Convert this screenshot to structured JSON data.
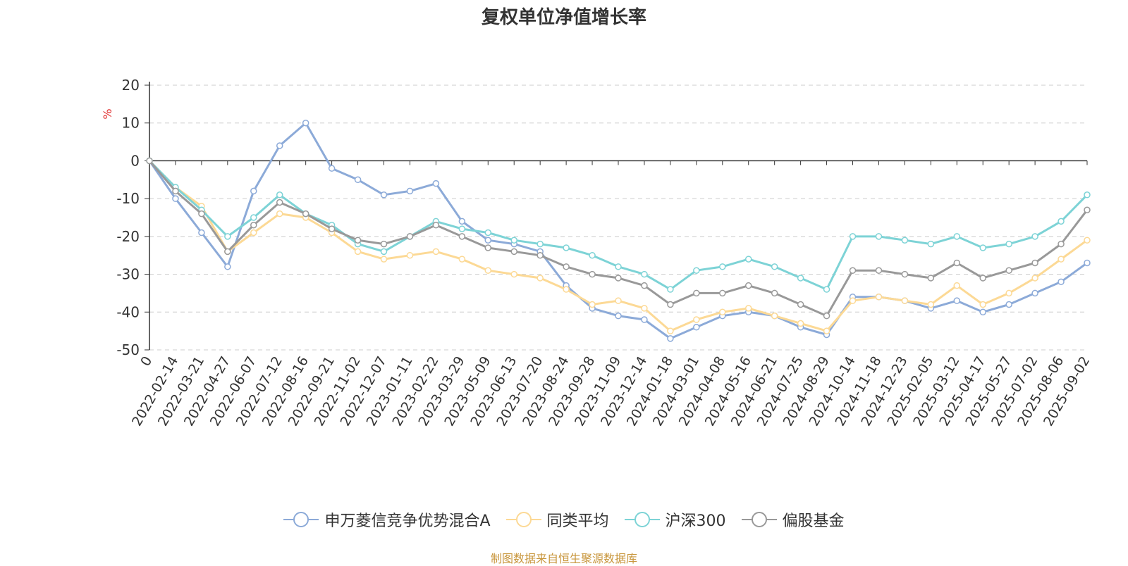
{
  "page": {
    "title": "复权单位净值增长率",
    "footer": "制图数据来自恒生聚源数据库"
  },
  "chart_data": {
    "type": "line",
    "title": "复权单位净值增长率",
    "ylabel": "%",
    "ylim": [
      -50,
      20
    ],
    "yticks": [
      20,
      10,
      0,
      -10,
      -20,
      -30,
      -40,
      -50
    ],
    "grid": true,
    "legend_position": "bottom",
    "categories": [
      "0",
      "2022-02-14",
      "2022-03-21",
      "2022-04-27",
      "2022-06-07",
      "2022-07-12",
      "2022-08-16",
      "2022-09-21",
      "2022-11-02",
      "2022-12-07",
      "2023-01-11",
      "2023-02-22",
      "2023-03-29",
      "2023-05-09",
      "2023-06-13",
      "2023-07-20",
      "2023-08-24",
      "2023-09-28",
      "2023-11-09",
      "2023-12-14",
      "2024-01-18",
      "2024-03-01",
      "2024-04-08",
      "2024-05-16",
      "2024-06-21",
      "2024-07-25",
      "2024-08-29",
      "2024-10-14",
      "2024-11-18",
      "2024-12-23",
      "2025-02-05",
      "2025-03-12",
      "2025-04-17",
      "2025-05-27",
      "2025-07-02",
      "2025-08-06",
      "2025-09-02"
    ],
    "series": [
      {
        "name": "申万菱信竞争优势混合A",
        "color": "#8caad8",
        "values": [
          0,
          -10,
          -19,
          -28,
          -8,
          4,
          10,
          -2,
          -5,
          -9,
          -8,
          -6,
          -16,
          -21,
          -22,
          -24,
          -33,
          -39,
          -41,
          -42,
          -47,
          -44,
          -41,
          -40,
          -41,
          -44,
          -46,
          -36,
          -36,
          -37,
          -39,
          -37,
          -40,
          -38,
          -35,
          -32,
          -27
        ]
      },
      {
        "name": "同类平均",
        "color": "#fcd995",
        "values": [
          0,
          -7,
          -12,
          -24,
          -19,
          -14,
          -15,
          -19,
          -24,
          -26,
          -25,
          -24,
          -26,
          -29,
          -30,
          -31,
          -34,
          -38,
          -37,
          -39,
          -45,
          -42,
          -40,
          -39,
          -41,
          -43,
          -45,
          -37,
          -36,
          -37,
          -38,
          -33,
          -38,
          -35,
          -31,
          -26,
          -21
        ]
      },
      {
        "name": "沪深300",
        "color": "#7dd3d6",
        "values": [
          0,
          -7,
          -13,
          -20,
          -15,
          -9,
          -14,
          -17,
          -22,
          -24,
          -20,
          -16,
          -18,
          -19,
          -21,
          -22,
          -23,
          -25,
          -28,
          -30,
          -34,
          -29,
          -28,
          -26,
          -28,
          -31,
          -34,
          -20,
          -20,
          -21,
          -22,
          -20,
          -23,
          -22,
          -20,
          -16,
          -9
        ]
      },
      {
        "name": "偏股基金",
        "color": "#999999",
        "values": [
          0,
          -8,
          -14,
          -24,
          -17,
          -11,
          -14,
          -18,
          -21,
          -22,
          -20,
          -17,
          -20,
          -23,
          -24,
          -25,
          -28,
          -30,
          -31,
          -33,
          -38,
          -35,
          -35,
          -33,
          -35,
          -38,
          -41,
          -29,
          -29,
          -30,
          -31,
          -27,
          -31,
          -29,
          -27,
          -22,
          -13
        ]
      }
    ]
  }
}
